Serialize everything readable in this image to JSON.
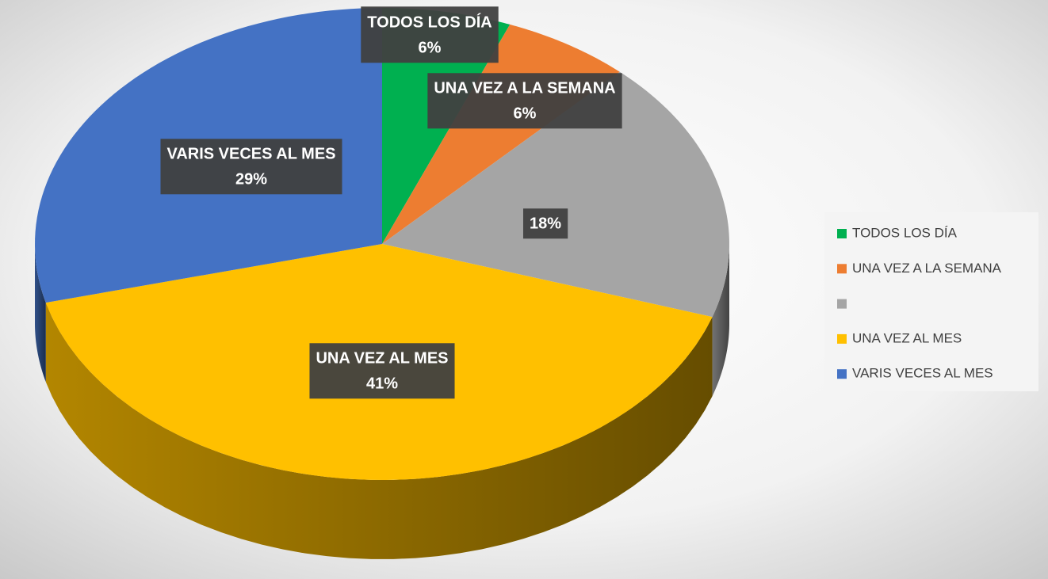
{
  "chart_data": {
    "type": "pie",
    "categories": [
      "TODOS LOS DÍA",
      "UNA VEZ A LA SEMANA",
      null,
      "UNA VEZ AL MES",
      "VARIS VECES AL MES"
    ],
    "values": [
      6,
      6,
      18,
      41,
      29
    ],
    "value_labels": [
      "6%",
      "6%",
      "18%",
      "41%",
      "29%"
    ],
    "colors": [
      "#00b050",
      "#ed7d31",
      "#a5a5a5",
      "#ffc000",
      "#4472c4"
    ],
    "legend": "right"
  }
}
